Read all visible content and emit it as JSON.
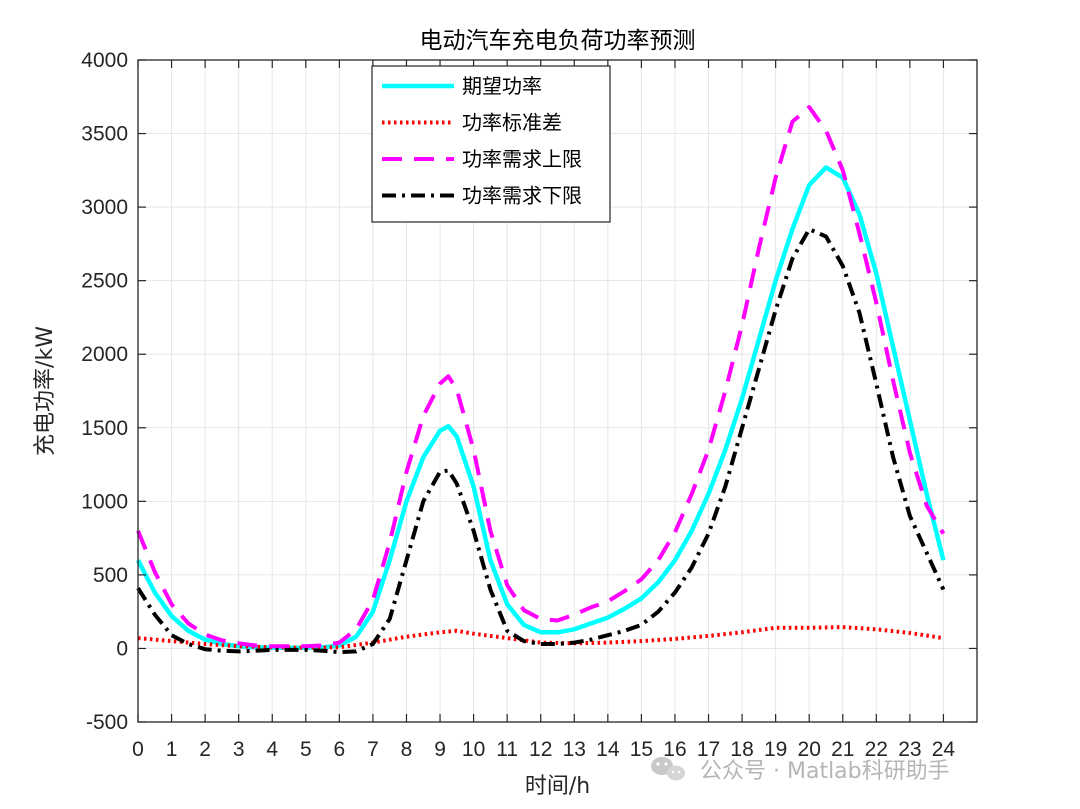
{
  "chart_data": {
    "type": "line",
    "title": "电动汽车充电负荷功率预测",
    "xlabel": "时间/h",
    "ylabel": "充电功率/kW",
    "xlim": [
      0,
      25
    ],
    "ylim": [
      -500,
      4000
    ],
    "xticks": [
      0,
      1,
      2,
      3,
      4,
      5,
      6,
      7,
      8,
      9,
      10,
      11,
      12,
      13,
      14,
      15,
      16,
      17,
      18,
      19,
      20,
      21,
      22,
      23,
      24
    ],
    "yticks": [
      -500,
      0,
      500,
      1000,
      1500,
      2000,
      2500,
      3000,
      3500,
      4000
    ],
    "grid": true,
    "legend_position": "top-center",
    "series": [
      {
        "name": "期望功率",
        "color": "#00ffff",
        "style": "solid",
        "x": [
          0,
          0.5,
          1,
          1.5,
          2,
          2.5,
          3,
          3.5,
          4,
          4.5,
          5,
          5.5,
          6,
          6.5,
          7,
          7.5,
          8,
          8.5,
          9,
          9.25,
          9.5,
          10,
          10.5,
          11,
          11.5,
          12,
          12.5,
          13,
          13.5,
          14,
          14.5,
          15,
          15.5,
          16,
          16.5,
          17,
          17.5,
          18,
          18.5,
          19,
          19.5,
          20,
          20.5,
          21,
          21.5,
          22,
          22.5,
          23,
          23.5,
          24
        ],
        "values": [
          600,
          380,
          220,
          120,
          60,
          30,
          15,
          8,
          5,
          5,
          5,
          8,
          20,
          80,
          250,
          600,
          1000,
          1300,
          1480,
          1510,
          1440,
          1100,
          600,
          300,
          160,
          110,
          110,
          130,
          170,
          210,
          270,
          340,
          450,
          600,
          800,
          1050,
          1350,
          1700,
          2100,
          2500,
          2850,
          3150,
          3270,
          3200,
          2950,
          2550,
          2050,
          1550,
          1050,
          600
        ]
      },
      {
        "name": "功率标准差",
        "color": "#ff0000",
        "style": "dotted",
        "x": [
          0,
          1,
          2,
          3,
          4,
          5,
          6,
          7,
          8,
          9,
          9.5,
          10,
          11,
          12,
          13,
          14,
          15,
          16,
          17,
          18,
          19,
          20,
          21,
          22,
          23,
          24
        ],
        "values": [
          70,
          50,
          30,
          15,
          8,
          5,
          8,
          40,
          80,
          110,
          120,
          100,
          70,
          40,
          35,
          40,
          50,
          65,
          85,
          110,
          140,
          140,
          145,
          130,
          105,
          70
        ]
      },
      {
        "name": "功率需求上限",
        "color": "#ff00ff",
        "style": "dashed",
        "x": [
          0,
          0.5,
          1,
          1.5,
          2,
          2.5,
          3,
          3.5,
          4,
          4.5,
          5,
          5.5,
          6,
          6.5,
          7,
          7.5,
          8,
          8.5,
          9,
          9.25,
          9.5,
          10,
          10.5,
          11,
          11.5,
          12,
          12.5,
          13,
          13.5,
          14,
          14.5,
          15,
          15.5,
          16,
          16.5,
          17,
          17.5,
          18,
          18.5,
          19,
          19.5,
          20,
          20.5,
          21,
          21.5,
          22,
          22.5,
          23,
          23.5,
          24
        ],
        "values": [
          800,
          520,
          300,
          170,
          95,
          55,
          35,
          20,
          15,
          15,
          15,
          20,
          40,
          130,
          330,
          720,
          1200,
          1580,
          1800,
          1850,
          1760,
          1350,
          800,
          430,
          260,
          200,
          190,
          230,
          280,
          320,
          390,
          470,
          600,
          790,
          1050,
          1350,
          1750,
          2200,
          2720,
          3200,
          3580,
          3680,
          3520,
          3250,
          2820,
          2350,
          1820,
          1330,
          970,
          780
        ]
      },
      {
        "name": "功率需求下限",
        "color": "#000000",
        "style": "dashdot",
        "x": [
          0,
          0.5,
          1,
          1.5,
          2,
          2.5,
          3,
          3.5,
          4,
          4.5,
          5,
          5.5,
          6,
          6.5,
          7,
          7.5,
          8,
          8.5,
          9,
          9.25,
          9.5,
          10,
          10.5,
          11,
          11.5,
          12,
          12.5,
          13,
          13.5,
          14,
          14.5,
          15,
          15.5,
          16,
          16.5,
          17,
          17.5,
          18,
          18.5,
          19,
          19.5,
          20,
          20.5,
          21,
          21.5,
          22,
          22.5,
          23,
          23.5,
          24
        ],
        "values": [
          410,
          230,
          90,
          30,
          -5,
          -15,
          -20,
          -15,
          -10,
          -10,
          -10,
          -15,
          -25,
          -20,
          30,
          200,
          600,
          1000,
          1200,
          1210,
          1120,
          800,
          400,
          120,
          50,
          30,
          30,
          40,
          60,
          90,
          120,
          160,
          250,
          380,
          550,
          780,
          1100,
          1500,
          1900,
          2300,
          2650,
          2850,
          2800,
          2600,
          2280,
          1800,
          1300,
          900,
          650,
          400
        ]
      }
    ]
  },
  "watermark": {
    "label": "公众号 · Matlab科研助手",
    "icon": "wechat-icon"
  }
}
